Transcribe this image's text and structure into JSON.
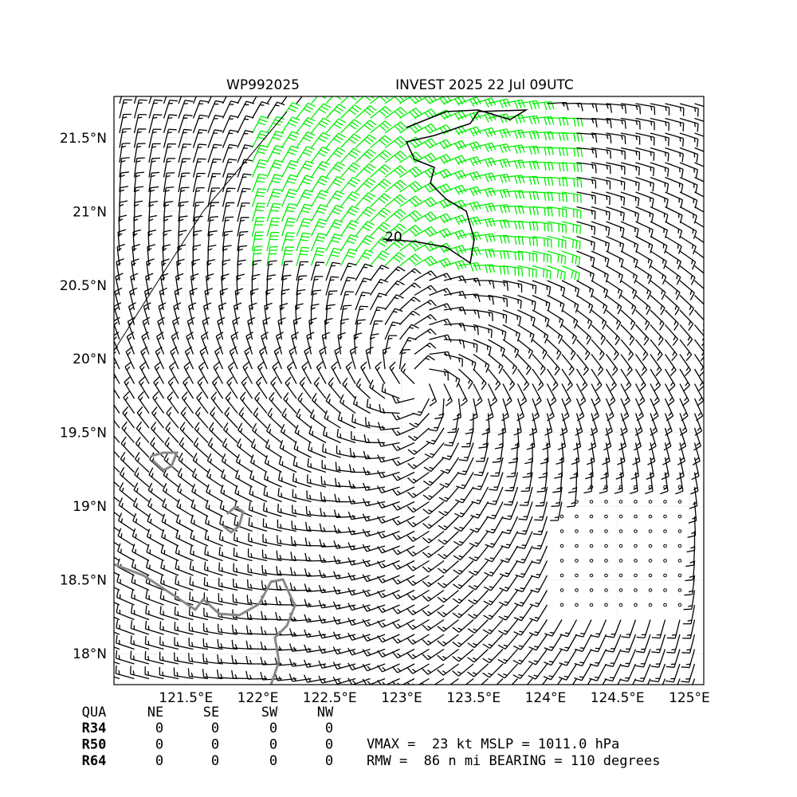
{
  "map": {
    "title_left": "WP992025",
    "title_right": "INVEST 2025 22 Jul 09UTC",
    "contour_label": "20",
    "xlim": [
      121.0,
      125.1
    ],
    "ylim": [
      17.79,
      21.78
    ],
    "xticks": [
      {
        "value": 121.5,
        "label": "121.5°E"
      },
      {
        "value": 122,
        "label": "122°E"
      },
      {
        "value": 122.5,
        "label": "122.5°E"
      },
      {
        "value": 123,
        "label": "123°E"
      },
      {
        "value": 123.5,
        "label": "123.5°E"
      },
      {
        "value": 124,
        "label": "124°E"
      },
      {
        "value": 124.5,
        "label": "124.5°E"
      },
      {
        "value": 125,
        "label": "125°E"
      }
    ],
    "yticks": [
      {
        "value": 18,
        "label": "18°N"
      },
      {
        "value": 18.5,
        "label": "18.5°N"
      },
      {
        "value": 19,
        "label": "19°N"
      },
      {
        "value": 19.5,
        "label": "19.5°N"
      },
      {
        "value": 20,
        "label": "20°N"
      },
      {
        "value": 20.5,
        "label": "20.5°N"
      },
      {
        "value": 21,
        "label": "21°N"
      },
      {
        "value": 21.5,
        "label": "21.5°N"
      }
    ]
  },
  "table": {
    "header": [
      "QUA",
      "NE",
      "SE",
      "SW",
      "NW"
    ],
    "rows": [
      [
        "R34",
        0,
        0,
        0,
        0
      ],
      [
        "R50",
        0,
        0,
        0,
        0
      ],
      [
        "R64",
        0,
        0,
        0,
        0
      ]
    ]
  },
  "stats": [
    "VMAX =  23 kt MSLP = 1011.0 hPa",
    "RMW =  86 n mi BEARING = 110 degrees"
  ]
}
